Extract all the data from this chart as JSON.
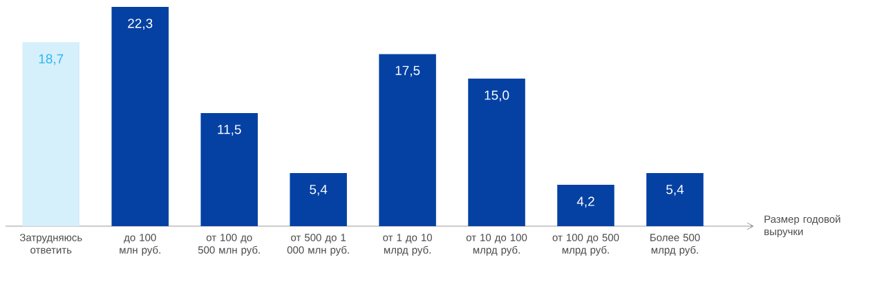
{
  "chart_data": {
    "type": "bar",
    "categories": [
      "Затрудняюсь ответить",
      "до 100 млн руб.",
      "от 100 до 500 млн руб.",
      "от 500 до 1 000 млн руб.",
      "от 1 до 10 млрд руб.",
      "от 10 до 100 млрд руб.",
      "от 100 до 500 млрд руб.",
      "Более 500 млрд руб."
    ],
    "values": [
      18.7,
      22.3,
      11.5,
      5.4,
      17.5,
      15.0,
      4.2,
      5.4
    ],
    "value_labels": [
      "18,7",
      "22,3",
      "11,5",
      "5,4",
      "17,5",
      "15,0",
      "4,2",
      "5,4"
    ],
    "colors": [
      "#d5effb",
      "#0541a3",
      "#0541a3",
      "#0541a3",
      "#0541a3",
      "#0541a3",
      "#0541a3",
      "#0541a3"
    ],
    "xlabel": "Размер годовой выручки"
  }
}
